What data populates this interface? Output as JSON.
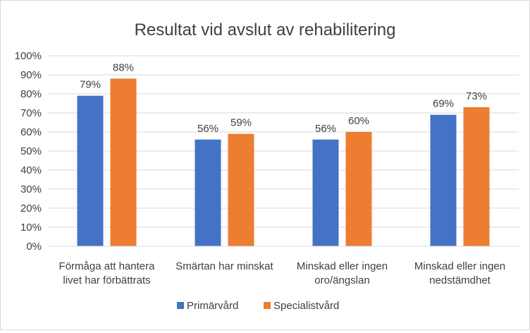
{
  "chart_data": {
    "type": "bar",
    "title": "Resultat vid avslut av rehabilitering",
    "xlabel": "",
    "ylabel": "",
    "ylim": [
      0,
      100
    ],
    "yticks": [
      "0%",
      "10%",
      "20%",
      "30%",
      "40%",
      "50%",
      "60%",
      "70%",
      "80%",
      "90%",
      "100%"
    ],
    "categories": [
      [
        "Förmåga att hantera",
        "livet har förbättrats"
      ],
      [
        "Smärtan har minskat"
      ],
      [
        "Minskad eller ingen",
        "oro/ängslan"
      ],
      [
        "Minskad eller ingen",
        "nedstämdhet"
      ]
    ],
    "series": [
      {
        "name": "Primärvård",
        "color": "#4472c4",
        "values": [
          79,
          56,
          56,
          69
        ],
        "labels": [
          "79%",
          "56%",
          "56%",
          "69%"
        ]
      },
      {
        "name": "Specialistvård",
        "color": "#ed7d31",
        "values": [
          88,
          59,
          60,
          73
        ],
        "labels": [
          "88%",
          "59%",
          "60%",
          "73%"
        ]
      }
    ],
    "grid": true,
    "legend_position": "bottom"
  }
}
